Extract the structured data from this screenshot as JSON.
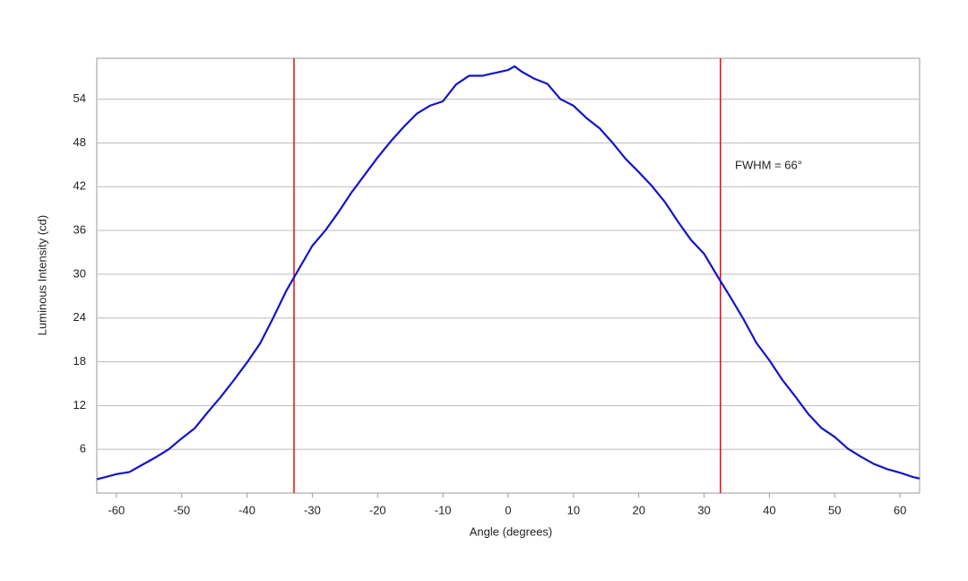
{
  "chart_data": {
    "type": "line",
    "xlabel": "Angle (degrees)",
    "ylabel": "Luminous Intensity (cd)",
    "x": [
      -63,
      -60,
      -58,
      -56,
      -54,
      -52,
      -50,
      -48,
      -46,
      -44,
      -42,
      -40,
      -38,
      -36,
      -34,
      -32,
      -30,
      -28,
      -26,
      -24,
      -22,
      -20,
      -18,
      -16,
      -14,
      -12,
      -10,
      -8,
      -6,
      -4,
      -2,
      0,
      1,
      2,
      4,
      6,
      8,
      10,
      12,
      14,
      16,
      18,
      20,
      22,
      24,
      26,
      28,
      30,
      32,
      34,
      36,
      38,
      40,
      42,
      44,
      46,
      48,
      50,
      52,
      54,
      56,
      58,
      60,
      62,
      63
    ],
    "series": [
      {
        "color": "#1414c8",
        "values": [
          1.9,
          2.6,
          2.9,
          3.9,
          4.9,
          6.0,
          7.5,
          8.9,
          11.1,
          13.2,
          15.5,
          17.9,
          20.5,
          24.0,
          27.7,
          30.8,
          33.9,
          36.0,
          38.5,
          41.2,
          43.6,
          46.0,
          48.2,
          50.2,
          52.0,
          53.1,
          53.7,
          56.0,
          57.2,
          57.2,
          57.6,
          58.0,
          58.5,
          57.8,
          56.8,
          56.1,
          54.0,
          53.1,
          51.4,
          50.0,
          48.0,
          45.8,
          44.0,
          42.1,
          39.9,
          37.2,
          34.7,
          32.8,
          29.8,
          26.9,
          23.9,
          20.6,
          18.2,
          15.5,
          13.2,
          10.8,
          8.9,
          7.7,
          6.1,
          5.0,
          4.0,
          3.3,
          2.8,
          2.2,
          2.0
        ]
      }
    ],
    "vlines": [
      -32.8,
      32.5
    ],
    "vline_color": "#e01010",
    "annotation": "FWHM = 66°",
    "xlim": [
      -63,
      63
    ],
    "xticks": [
      -60,
      -50,
      -40,
      -30,
      -20,
      -10,
      0,
      10,
      20,
      30,
      40,
      50,
      60
    ],
    "ylim": [
      0,
      59.6
    ],
    "yticks": [
      6,
      12,
      18,
      24,
      30,
      36,
      42,
      48,
      54
    ],
    "grid": true
  }
}
